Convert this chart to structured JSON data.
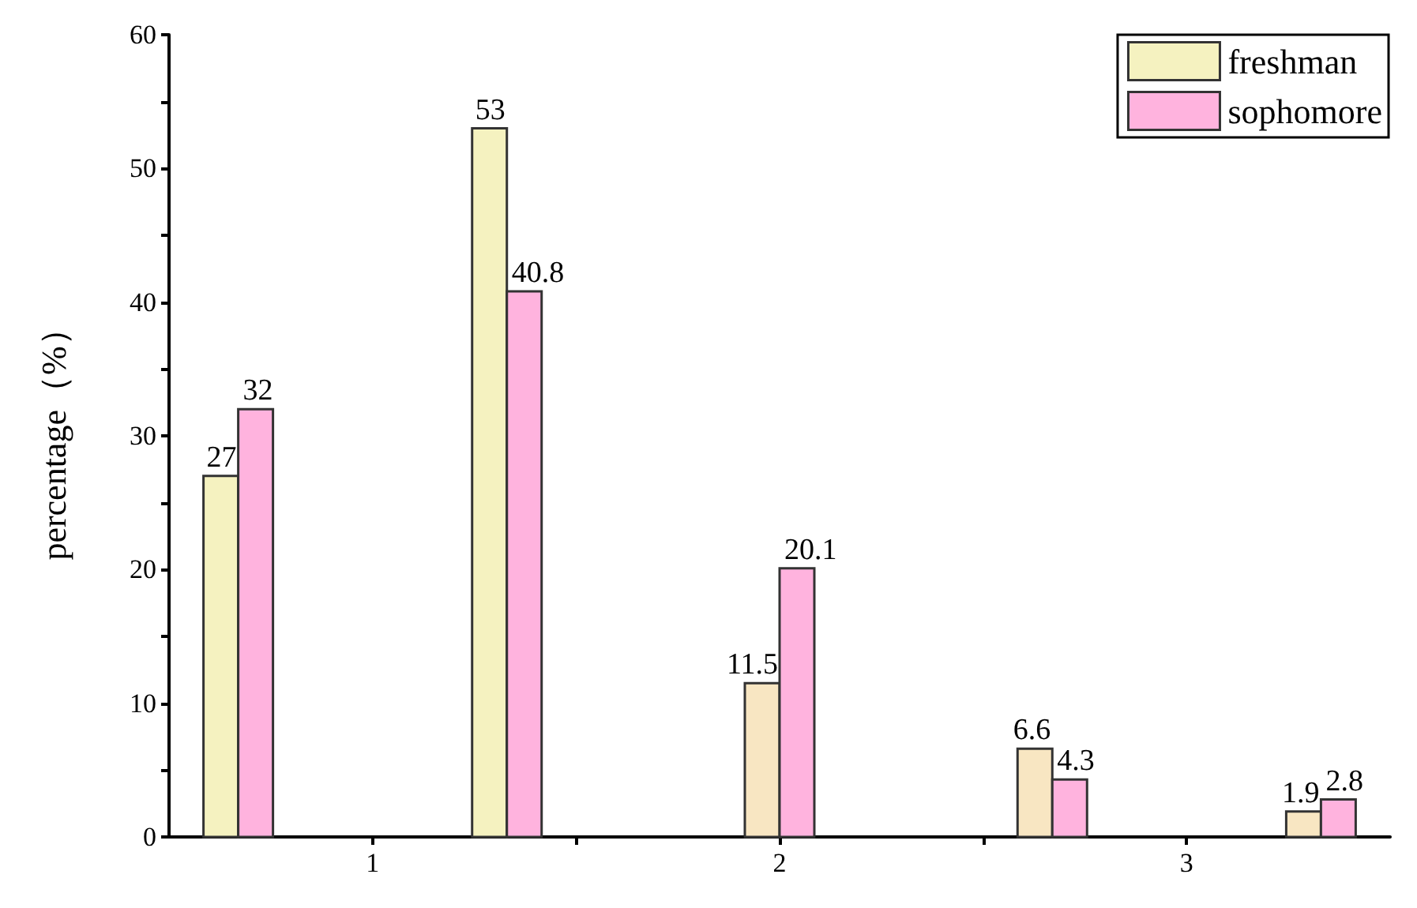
{
  "chart_data": {
    "type": "bar",
    "ylabel": "percentage（%）",
    "x": [
      0.67,
      1.33,
      2,
      2.67,
      3.33
    ],
    "series": [
      {
        "name": "freshman",
        "color": "#f5f2c0",
        "colors": [
          "#f5f2c0",
          "#f5f2c0",
          "#f8e6c2",
          "#f8e6c2",
          "#f8e6c2"
        ],
        "values": [
          27,
          53,
          11.5,
          6.6,
          1.9
        ]
      },
      {
        "name": "sophomore",
        "color": "#ffb3de",
        "values": [
          32,
          40.8,
          20.1,
          4.3,
          2.8
        ]
      }
    ],
    "xlim": [
      0.5,
      3.5
    ],
    "xticks": [
      1,
      {
        "value": 1.5,
        "label": null
      },
      2,
      {
        "value": 2.5,
        "label": null
      },
      3
    ],
    "ylim": [
      0,
      60
    ],
    "yticks": [
      0,
      {
        "value": 5,
        "label": null
      },
      10,
      {
        "value": 15,
        "label": null
      },
      20,
      {
        "value": 25,
        "label": null
      },
      30,
      {
        "value": 35,
        "label": null
      },
      40,
      {
        "value": 45,
        "label": null
      },
      50,
      {
        "value": 55,
        "label": null
      },
      60
    ],
    "data_labels": true,
    "legend": "top right",
    "grid": false
  }
}
